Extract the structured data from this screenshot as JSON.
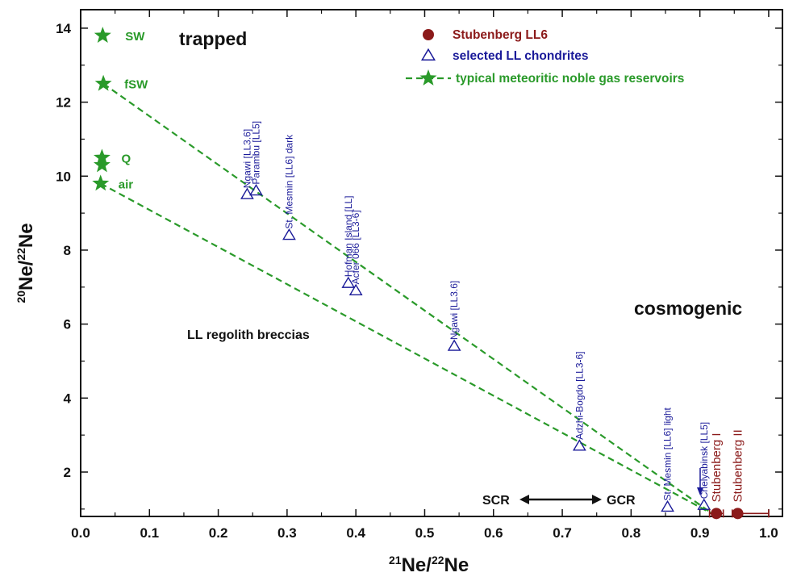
{
  "colors": {
    "green": "#2a9a2a",
    "blue": "#1a1a99",
    "red": "#8b1a1a",
    "black": "#111111"
  },
  "chart_data": {
    "type": "scatter",
    "xlabel_base": "Ne/",
    "xlabel_sup1": "21",
    "xlabel_sup2": "22",
    "xlabel_tail": "Ne",
    "ylabel_base": "Ne/",
    "ylabel_sup1": "20",
    "ylabel_sup2": "22",
    "ylabel_tail": "Ne",
    "xlim": [
      0.0,
      1.02
    ],
    "ylim": [
      0.8,
      14.5
    ],
    "x_ticks": [
      "0.0",
      "0.1",
      "0.2",
      "0.3",
      "0.4",
      "0.5",
      "0.6",
      "0.7",
      "0.8",
      "0.9",
      "1.0"
    ],
    "y_ticks": [
      "2",
      "4",
      "6",
      "8",
      "10",
      "12",
      "14"
    ],
    "legend": [
      {
        "label": "Stubenberg LL6",
        "marker": "circle",
        "color": "#8b1a1a"
      },
      {
        "label": "selected LL chondrites",
        "marker": "open-triangle",
        "color": "#1a1a99"
      },
      {
        "label": "typical meteoritic noble gas reservoirs",
        "marker": "star",
        "color": "#2a9a2a"
      }
    ],
    "reservoirs": [
      {
        "name": "SW",
        "x": 0.032,
        "y": 13.8
      },
      {
        "name": "fSW",
        "x": 0.033,
        "y": 12.5
      },
      {
        "name": "Q",
        "x": 0.031,
        "y": 10.5
      },
      {
        "name": "",
        "x": 0.031,
        "y": 10.3
      },
      {
        "name": "air",
        "x": 0.029,
        "y": 9.8
      }
    ],
    "mixing_lines": [
      {
        "x": [
          0.033,
          0.92
        ],
        "y": [
          12.5,
          0.85
        ]
      },
      {
        "x": [
          0.029,
          0.92
        ],
        "y": [
          9.8,
          0.85
        ]
      }
    ],
    "ll_chondrites": [
      {
        "label": "Ngawi [LL3.6]",
        "x": 0.242,
        "y": 9.5
      },
      {
        "label": "Parambu [LL5]",
        "x": 0.255,
        "y": 9.6
      },
      {
        "label": "St. Mesmin [LL6] dark",
        "x": 0.303,
        "y": 8.4
      },
      {
        "label": "Hofman Island [LL]",
        "x": 0.389,
        "y": 7.1
      },
      {
        "label": "Acfer 066 [LL3-6]",
        "x": 0.4,
        "y": 6.9
      },
      {
        "label": "Ngawi [LL3.6]",
        "x": 0.543,
        "y": 5.4
      },
      {
        "label": "Adzhi-Bogdo [LL3-6]",
        "x": 0.725,
        "y": 2.7
      },
      {
        "label": "St. Mesmin [LL6] light",
        "x": 0.853,
        "y": 1.05
      },
      {
        "label": "Chelyabinsk [LL5]",
        "x": 0.906,
        "y": 1.1
      }
    ],
    "stubenberg": [
      {
        "label": "Stubenberg I",
        "x": 0.924,
        "y": 0.88,
        "xerr_minus": 0.01,
        "xerr_plus": 0.01
      },
      {
        "label": "Stubenberg II",
        "x": 0.955,
        "y": 0.88,
        "xerr_minus": 0.008,
        "xerr_plus": 0.045
      }
    ],
    "annotations": {
      "trapped": "trapped",
      "cosmogenic": "cosmogenic",
      "regolith": "LL regolith breccias",
      "scr": "SCR",
      "gcr": "GCR"
    }
  }
}
